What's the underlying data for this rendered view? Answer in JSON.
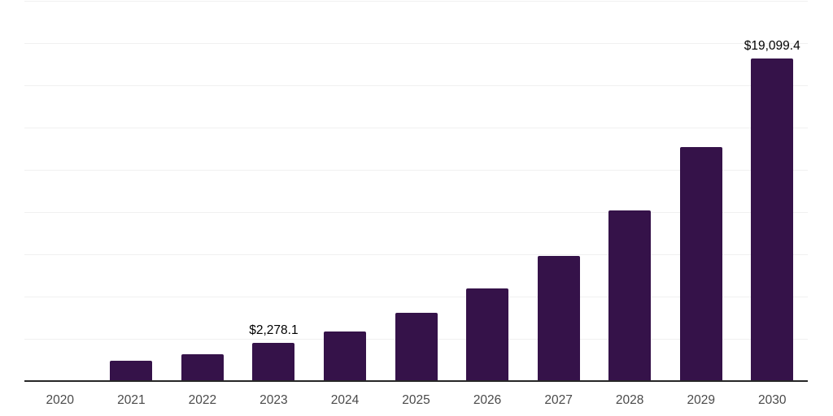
{
  "chart_data": {
    "type": "bar",
    "title": "",
    "xlabel": "",
    "ylabel": "",
    "categories": [
      "2020",
      "2021",
      "2022",
      "2023",
      "2024",
      "2025",
      "2026",
      "2027",
      "2028",
      "2029",
      "2030"
    ],
    "values": [
      40,
      1190,
      1600,
      2278.1,
      2950,
      4020,
      5480,
      7420,
      10100,
      13850,
      19099.4
    ],
    "data_labels": [
      "",
      "",
      "",
      "$2,278.1",
      "",
      "",
      "",
      "",
      "",
      "",
      "$19,099.4"
    ],
    "ylim": [
      0,
      22500
    ],
    "gridline_step": 2500,
    "grid": true,
    "legend": false,
    "y_tick_labels_visible": false,
    "bar_color": "#351249",
    "axis_color": "#262626",
    "gridline_color": "#f0f0f0",
    "x_tick_color": "#4a4a4a",
    "data_label_color": "#000000",
    "background_color": "#ffffff"
  }
}
